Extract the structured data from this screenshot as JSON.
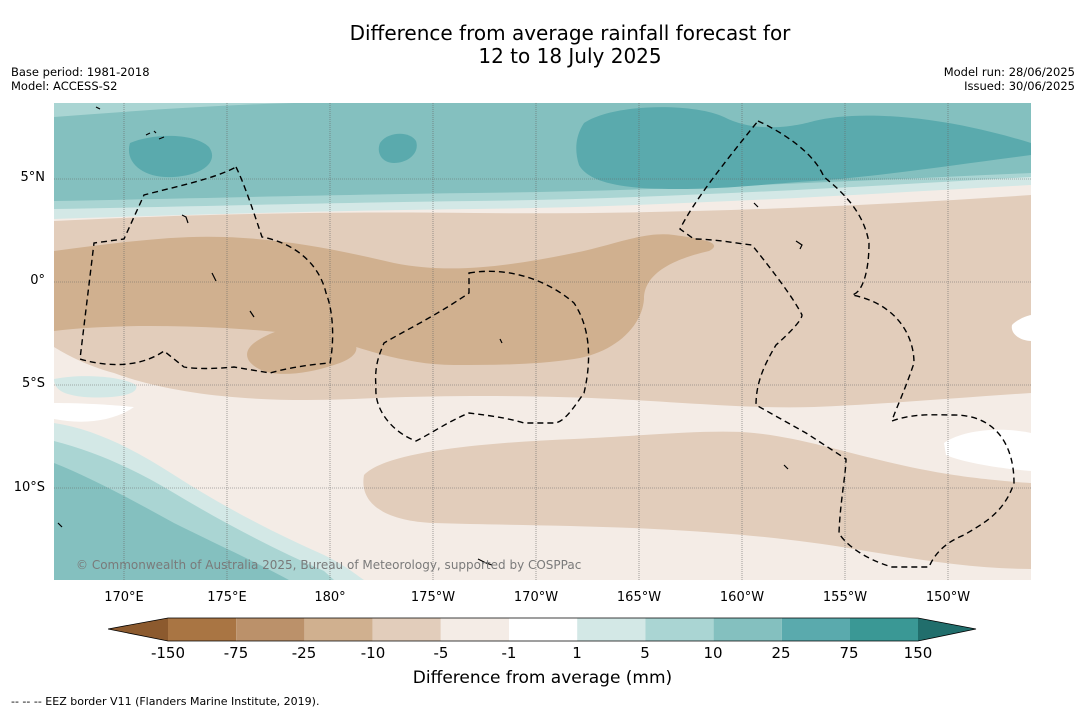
{
  "title": {
    "line1": "Difference from average rainfall forecast for",
    "line2": "12 to 18 July 2025"
  },
  "meta_left": {
    "base_period": "Base period: 1981-2018",
    "model": "Model: ACCESS-S2"
  },
  "meta_right": {
    "model_run": "Model run: 28/06/2025",
    "issued": "Issued: 30/06/2025"
  },
  "map": {
    "latitude_labels": [
      "5°N",
      "0°",
      "5°S",
      "10°S"
    ],
    "longitude_labels": [
      "170°E",
      "175°E",
      "180°",
      "175°W",
      "170°W",
      "165°W",
      "160°W",
      "155°W",
      "150°W"
    ],
    "copyright": "© Commonwealth of Australia 2025, Bureau of Meteorology, supported by COSPPac"
  },
  "colorbar": {
    "ticks": [
      "-150",
      "-75",
      "-25",
      "-10",
      "-5",
      "-1",
      "1",
      "5",
      "10",
      "25",
      "75",
      "150"
    ],
    "colors": [
      "#8c5a2e",
      "#a97543",
      "#bb916a",
      "#d0b08f",
      "#e2cdbb",
      "#f4ece6",
      "#ffffff",
      "#d3e8e6",
      "#aad5d3",
      "#84c0bf",
      "#5aaaad",
      "#3a9895",
      "#216e6c"
    ],
    "label": "Difference from average (mm)"
  },
  "footnote": "--  --  -- EEZ border V11 (Flanders Marine Institute, 2019)."
}
